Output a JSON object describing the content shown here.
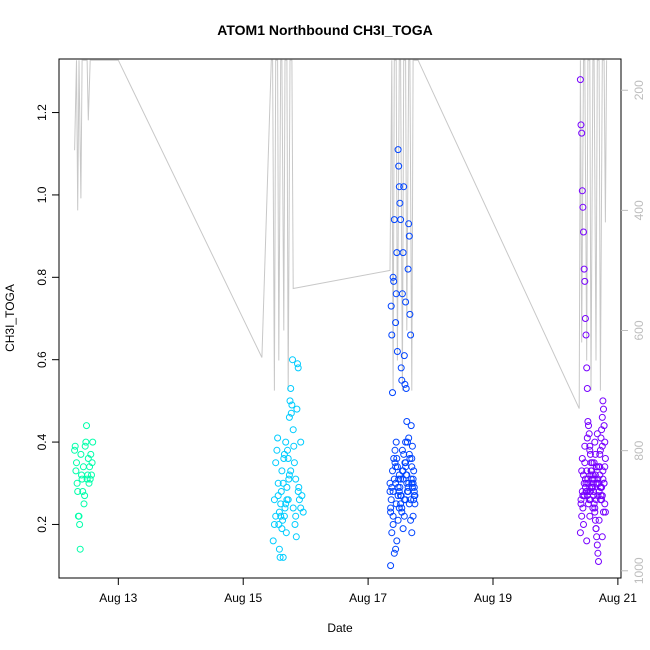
{
  "chart_data": {
    "type": "scatter",
    "title": "ATOM1 Northbound CH3I_TOGA",
    "xlabel": "Date",
    "ylabel": "CH3I_TOGA",
    "x_unit": "day-of-month (August)",
    "xlim": [
      12.05,
      21.05
    ],
    "ylim": [
      0.07,
      1.33
    ],
    "x_ticks": [
      13,
      15,
      17,
      19,
      21
    ],
    "x_tick_labels": [
      "Aug 13",
      "Aug 15",
      "Aug 17",
      "Aug 19",
      "Aug 21"
    ],
    "y_ticks": [
      0.2,
      0.4,
      0.6,
      0.8,
      1.0,
      1.2
    ],
    "y_tick_labels": [
      "0.2",
      "0.4",
      "0.6",
      "0.8",
      "1.0",
      "1.2"
    ],
    "y2_lim": [
      1012,
      148
    ],
    "y2_ticks": [
      200,
      400,
      600,
      800,
      1000
    ],
    "y2_tick_labels": [
      "200",
      "400",
      "600",
      "800",
      "1000"
    ],
    "grid": false,
    "colors": {
      "altitude_line": "#c8c8c8",
      "palette": [
        "#00ffaa",
        "#00ccff",
        "#0044ff",
        "#7700ff"
      ]
    },
    "altitude_trace": {
      "x": [
        12.3,
        12.33,
        12.35,
        12.37,
        12.4,
        12.42,
        12.45,
        12.48,
        12.5,
        12.52,
        12.55,
        13.0,
        15.3,
        15.45,
        15.47,
        15.5,
        15.52,
        15.55,
        15.57,
        15.6,
        15.62,
        15.65,
        15.67,
        15.7,
        15.72,
        15.75,
        15.78,
        15.8,
        17.35,
        17.38,
        17.4,
        17.42,
        17.45,
        17.47,
        17.5,
        17.52,
        17.55,
        17.57,
        17.6,
        17.62,
        17.65,
        17.67,
        17.7,
        17.72,
        17.75,
        17.78,
        17.8,
        20.38,
        20.4,
        20.42,
        20.45,
        20.47,
        20.5,
        20.52,
        20.55,
        20.57,
        20.6,
        20.62,
        20.65,
        20.67,
        20.7,
        20.72,
        20.75,
        20.78,
        20.8,
        20.82
      ],
      "y": [
        300,
        150,
        400,
        150,
        380,
        150,
        150,
        150,
        150,
        250,
        150,
        150,
        645,
        150,
        150,
        700,
        150,
        150,
        650,
        150,
        150,
        600,
        150,
        150,
        700,
        150,
        150,
        530,
        500,
        150,
        700,
        150,
        150,
        650,
        150,
        150,
        700,
        150,
        150,
        600,
        150,
        150,
        700,
        150,
        150,
        150,
        150,
        730,
        150,
        620,
        150,
        150,
        650,
        150,
        150,
        700,
        150,
        150,
        650,
        150,
        150,
        700,
        150,
        150,
        420,
        150
      ]
    },
    "series": [
      {
        "color": "#00ffaa",
        "x": [
          12.3,
          12.31,
          12.32,
          12.33,
          12.34,
          12.35,
          12.36,
          12.37,
          12.38,
          12.39,
          12.4,
          12.41,
          12.42,
          12.43,
          12.44,
          12.45,
          12.46,
          12.47,
          12.48,
          12.49,
          12.5,
          12.51,
          12.52,
          12.53,
          12.54,
          12.55,
          12.56,
          12.57,
          12.58,
          12.59
        ],
        "y": [
          0.38,
          0.39,
          0.33,
          0.35,
          0.3,
          0.28,
          0.22,
          0.22,
          0.2,
          0.14,
          0.37,
          0.32,
          0.31,
          0.28,
          0.34,
          0.25,
          0.27,
          0.39,
          0.4,
          0.44,
          0.31,
          0.32,
          0.36,
          0.3,
          0.34,
          0.31,
          0.37,
          0.32,
          0.35,
          0.4
        ]
      },
      {
        "color": "#00ccff",
        "x": [
          15.48,
          15.5,
          15.52,
          15.54,
          15.55,
          15.56,
          15.57,
          15.58,
          15.59,
          15.6,
          15.61,
          15.62,
          15.63,
          15.64,
          15.65,
          15.66,
          15.67,
          15.68,
          15.69,
          15.7,
          15.71,
          15.72,
          15.73,
          15.74,
          15.75,
          15.76,
          15.77,
          15.78,
          15.79,
          15.8,
          15.81,
          15.82,
          15.83,
          15.84,
          15.85,
          15.86,
          15.87,
          15.88,
          15.89,
          15.9,
          15.92,
          15.94,
          15.96,
          15.5,
          15.52,
          15.56,
          15.6,
          15.64,
          15.68,
          15.72,
          15.76,
          15.8,
          15.84,
          15.88,
          15.92,
          15.58,
          15.62,
          15.66,
          15.7,
          15.74
        ],
        "y": [
          0.16,
          0.26,
          0.22,
          0.38,
          0.41,
          0.3,
          0.2,
          0.14,
          0.12,
          0.25,
          0.28,
          0.33,
          0.21,
          0.12,
          0.36,
          0.22,
          0.24,
          0.4,
          0.18,
          0.29,
          0.38,
          0.26,
          0.31,
          0.46,
          0.5,
          0.53,
          0.47,
          0.49,
          0.6,
          0.43,
          0.39,
          0.35,
          0.2,
          0.22,
          0.17,
          0.48,
          0.59,
          0.58,
          0.29,
          0.26,
          0.24,
          0.27,
          0.23,
          0.2,
          0.35,
          0.27,
          0.22,
          0.3,
          0.25,
          0.36,
          0.33,
          0.24,
          0.31,
          0.28,
          0.4,
          0.23,
          0.19,
          0.37,
          0.26,
          0.32
        ]
      },
      {
        "color": "#0044ff",
        "x": [
          17.35,
          17.36,
          17.37,
          17.38,
          17.39,
          17.4,
          17.41,
          17.42,
          17.43,
          17.44,
          17.45,
          17.46,
          17.47,
          17.48,
          17.49,
          17.5,
          17.51,
          17.52,
          17.53,
          17.54,
          17.55,
          17.56,
          17.57,
          17.58,
          17.59,
          17.6,
          17.61,
          17.62,
          17.63,
          17.64,
          17.65,
          17.66,
          17.67,
          17.68,
          17.69,
          17.7,
          17.71,
          17.72,
          17.73,
          17.74,
          17.75,
          17.36,
          17.38,
          17.4,
          17.42,
          17.44,
          17.46,
          17.48,
          17.5,
          17.52,
          17.54,
          17.56,
          17.58,
          17.6,
          17.62,
          17.64,
          17.66,
          17.68,
          17.7,
          17.72,
          17.74,
          17.37,
          17.39,
          17.41,
          17.43,
          17.45,
          17.47,
          17.49,
          17.51,
          17.53,
          17.55,
          17.57,
          17.59,
          17.61,
          17.63,
          17.65,
          17.67,
          17.69,
          17.71,
          17.73,
          17.75,
          17.35,
          17.4,
          17.45,
          17.5,
          17.55,
          17.6,
          17.65,
          17.7,
          17.38,
          17.42,
          17.46,
          17.5,
          17.54,
          17.58,
          17.62,
          17.66,
          17.7,
          17.74,
          17.44,
          17.48,
          17.52,
          17.56,
          17.6,
          17.64,
          17.68,
          17.72,
          17.36,
          17.4,
          17.44,
          17.48,
          17.52,
          17.56,
          17.6
        ],
        "y": [
          0.3,
          0.24,
          0.73,
          0.66,
          0.52,
          0.8,
          0.79,
          0.94,
          0.35,
          0.69,
          0.76,
          0.86,
          0.62,
          1.11,
          1.07,
          1.02,
          0.98,
          0.94,
          0.58,
          0.55,
          0.76,
          0.86,
          1.02,
          0.61,
          0.54,
          0.74,
          0.53,
          0.45,
          0.4,
          0.82,
          0.93,
          0.9,
          0.71,
          0.66,
          0.44,
          0.36,
          0.39,
          0.3,
          0.26,
          0.28,
          0.25,
          0.1,
          0.18,
          0.2,
          0.13,
          0.14,
          0.16,
          0.21,
          0.24,
          0.27,
          0.23,
          0.19,
          0.22,
          0.26,
          0.3,
          0.28,
          0.25,
          0.21,
          0.18,
          0.22,
          0.29,
          0.26,
          0.33,
          0.36,
          0.38,
          0.4,
          0.34,
          0.31,
          0.29,
          0.27,
          0.33,
          0.37,
          0.35,
          0.32,
          0.28,
          0.3,
          0.36,
          0.31,
          0.29,
          0.33,
          0.27,
          0.28,
          0.22,
          0.25,
          0.32,
          0.38,
          0.4,
          0.41,
          0.34,
          0.29,
          0.31,
          0.36,
          0.28,
          0.24,
          0.26,
          0.32,
          0.37,
          0.3,
          0.27,
          0.34,
          0.29,
          0.31,
          0.33,
          0.35,
          0.29,
          0.26,
          0.31,
          0.23,
          0.28,
          0.3,
          0.27,
          0.25,
          0.31,
          0.34
        ]
      },
      {
        "color": "#7700ff",
        "x": [
          20.4,
          20.41,
          20.42,
          20.43,
          20.44,
          20.45,
          20.46,
          20.47,
          20.48,
          20.49,
          20.5,
          20.51,
          20.52,
          20.53,
          20.54,
          20.55,
          20.56,
          20.57,
          20.58,
          20.59,
          20.6,
          20.61,
          20.62,
          20.63,
          20.64,
          20.65,
          20.66,
          20.67,
          20.68,
          20.69,
          20.7,
          20.71,
          20.72,
          20.73,
          20.74,
          20.75,
          20.76,
          20.77,
          20.78,
          20.79,
          20.8,
          20.41,
          20.43,
          20.45,
          20.47,
          20.49,
          20.51,
          20.53,
          20.55,
          20.57,
          20.59,
          20.61,
          20.63,
          20.65,
          20.67,
          20.69,
          20.71,
          20.73,
          20.75,
          20.77,
          20.79,
          20.42,
          20.44,
          20.46,
          20.48,
          20.5,
          20.52,
          20.54,
          20.56,
          20.58,
          20.6,
          20.62,
          20.64,
          20.66,
          20.68,
          20.7,
          20.72,
          20.74,
          20.76,
          20.78,
          20.4,
          20.45,
          20.5,
          20.55,
          20.6,
          20.65,
          20.7,
          20.75,
          20.8,
          20.43,
          20.47,
          20.51,
          20.55,
          20.59,
          20.63,
          20.67,
          20.71,
          20.75,
          20.79,
          20.44,
          20.48,
          20.52,
          20.56,
          20.6,
          20.64,
          20.68,
          20.72,
          20.76,
          20.42,
          20.46,
          20.5,
          20.54,
          20.58,
          20.62,
          20.66,
          20.7,
          20.74,
          20.78,
          20.41,
          20.49,
          20.57,
          20.65,
          20.73
        ],
        "y": [
          1.28,
          1.17,
          1.15,
          1.01,
          0.97,
          0.91,
          0.82,
          0.79,
          0.7,
          0.66,
          0.58,
          0.53,
          0.45,
          0.44,
          0.42,
          0.39,
          0.37,
          0.35,
          0.33,
          0.31,
          0.29,
          0.27,
          0.25,
          0.23,
          0.21,
          0.19,
          0.17,
          0.15,
          0.13,
          0.11,
          0.3,
          0.34,
          0.38,
          0.41,
          0.43,
          0.46,
          0.5,
          0.48,
          0.44,
          0.4,
          0.36,
          0.26,
          0.28,
          0.32,
          0.35,
          0.3,
          0.27,
          0.25,
          0.29,
          0.33,
          0.31,
          0.28,
          0.24,
          0.26,
          0.3,
          0.34,
          0.32,
          0.29,
          0.27,
          0.23,
          0.25,
          0.22,
          0.24,
          0.27,
          0.31,
          0.33,
          0.3,
          0.28,
          0.26,
          0.29,
          0.32,
          0.35,
          0.37,
          0.34,
          0.31,
          0.28,
          0.26,
          0.29,
          0.33,
          0.3,
          0.18,
          0.2,
          0.16,
          0.22,
          0.24,
          0.19,
          0.21,
          0.17,
          0.23,
          0.36,
          0.39,
          0.41,
          0.38,
          0.35,
          0.4,
          0.42,
          0.37,
          0.39,
          0.34,
          0.27,
          0.29,
          0.31,
          0.28,
          0.3,
          0.32,
          0.27,
          0.29,
          0.31,
          0.33,
          0.3,
          0.28,
          0.26,
          0.29,
          0.31,
          0.34,
          0.28,
          0.26,
          0.3,
          0.25,
          0.28,
          0.32,
          0.3,
          0.27
        ]
      }
    ]
  }
}
